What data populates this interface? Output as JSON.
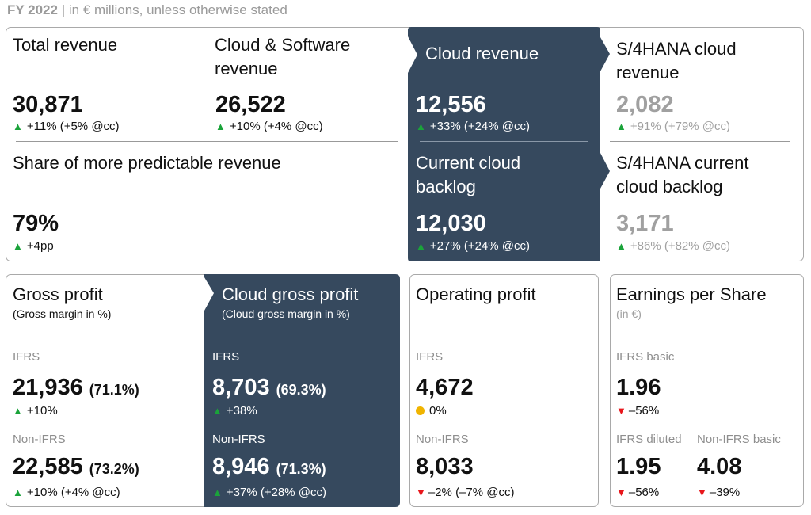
{
  "header": {
    "period": "FY 2022",
    "separator": "|",
    "note": "in € millions, unless otherwise stated"
  },
  "colors": {
    "dark_panel": "#36495e",
    "up": "#1aa33a",
    "down": "#e8161b",
    "neutral": "#f0b400",
    "muted": "#a0a0a0"
  },
  "kpis": {
    "total_revenue": {
      "title": "Total revenue",
      "value": "30,871",
      "change": "+11% (+5% @cc)",
      "trend": "up"
    },
    "cloud_software_revenue": {
      "title1": "Cloud & Software",
      "title2": "revenue",
      "value": "26,522",
      "change": "+10% (+4% @cc)",
      "trend": "up"
    },
    "cloud_revenue": {
      "title": "Cloud revenue",
      "value": "12,556",
      "change": "+33% (+24% @cc)",
      "trend": "up"
    },
    "s4_cloud_revenue": {
      "title1": "S/4HANA cloud",
      "title2": "revenue",
      "value": "2,082",
      "change": "+91% (+79% @cc)",
      "trend": "up"
    },
    "predictable_share": {
      "title": "Share of more predictable revenue",
      "value": "79%",
      "change": "+4pp",
      "trend": "up"
    },
    "current_cloud_backlog": {
      "title1": "Current cloud",
      "title2": "backlog",
      "value": "12,030",
      "change": "+27% (+24% @cc)",
      "trend": "up"
    },
    "s4_current_cloud_backlog": {
      "title1": "S/4HANA current",
      "title2": "cloud backlog",
      "value": "3,171",
      "change": "+86% (+82% @cc)",
      "trend": "up"
    }
  },
  "gross_profit": {
    "title": "Gross profit",
    "subtitle": "(Gross margin in %)",
    "ifrs": {
      "label": "IFRS",
      "value": "21,936",
      "margin": "(71.1%)",
      "change": "+10%"
    },
    "non_ifrs": {
      "label": "Non-IFRS",
      "value": "22,585",
      "margin": "(73.2%)",
      "change": "+10% (+4% @cc)"
    }
  },
  "cloud_gross_profit": {
    "title": "Cloud gross profit",
    "subtitle": "(Cloud gross margin in %)",
    "ifrs": {
      "label": "IFRS",
      "value": "8,703",
      "margin": "(69.3%)",
      "change": "+38%"
    },
    "non_ifrs": {
      "label": "Non-IFRS",
      "value": "8,946",
      "margin": "(71.3%)",
      "change": "+37% (+28% @cc)"
    }
  },
  "operating_profit": {
    "title": "Operating profit",
    "ifrs": {
      "label": "IFRS",
      "value": "4,672",
      "change": "0%",
      "trend": "neutral"
    },
    "non_ifrs": {
      "label": "Non-IFRS",
      "value": "8,033",
      "change": "–2% (–7% @cc)",
      "trend": "down"
    }
  },
  "eps": {
    "title": "Earnings per Share",
    "subtitle": "(in €)",
    "ifrs_basic": {
      "label": "IFRS basic",
      "value": "1.96",
      "change": "–56%",
      "trend": "down"
    },
    "ifrs_diluted": {
      "label": "IFRS diluted",
      "value": "1.95",
      "change": "–56%",
      "trend": "down"
    },
    "non_ifrs_basic": {
      "label": "Non-IFRS basic",
      "value": "4.08",
      "change": "–39%",
      "trend": "down"
    }
  },
  "icons": {
    "up": "triangle-up-icon",
    "down": "triangle-down-icon",
    "neutral": "circle-icon"
  }
}
